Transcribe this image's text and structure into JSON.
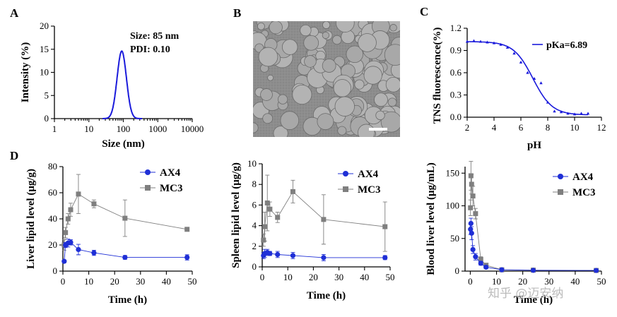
{
  "panels": {
    "a": "A",
    "b": "B",
    "c": "C",
    "d": "D"
  },
  "watermark": "知乎 @迈安纳",
  "micrograph": {
    "description_label": ""
  },
  "chart_data": [
    {
      "id": "A",
      "type": "line",
      "title": "",
      "xlabel": "Size (nm)",
      "ylabel": "Intensity (%)",
      "xscale": "log",
      "xlim": [
        1,
        10000
      ],
      "ylim": [
        0,
        20
      ],
      "xticks": [
        "1",
        "10",
        "100",
        "1000",
        "10000"
      ],
      "yticks": [
        "0",
        "5",
        "10",
        "15",
        "20"
      ],
      "annotations": [
        "Size: 85 nm",
        "PDI: 0.10"
      ],
      "peak": {
        "center": 90,
        "height": 14.6,
        "sigma_log10": 0.135
      },
      "color": "#1a1adb"
    },
    {
      "id": "C",
      "type": "scatter",
      "xlabel": "pH",
      "ylabel": "TNS fluorescence(%)",
      "xlim": [
        2,
        12
      ],
      "ylim": [
        0,
        1.2
      ],
      "xticks": [
        "2",
        "4",
        "6",
        "8",
        "10",
        "12"
      ],
      "yticks": [
        "0.0",
        "0.3",
        "0.6",
        "0.9",
        "1.2"
      ],
      "legend": "pKa=6.89",
      "fit": {
        "pka": 6.89,
        "top": 1.02,
        "bottom": 0.03,
        "slope": 0.72
      },
      "points": [
        [
          2,
          1.02
        ],
        [
          2.5,
          1.03
        ],
        [
          3,
          1.02
        ],
        [
          3.5,
          1.01
        ],
        [
          4,
          1.0
        ],
        [
          4.5,
          0.98
        ],
        [
          5,
          0.94
        ],
        [
          5.5,
          0.86
        ],
        [
          6,
          0.74
        ],
        [
          6.5,
          0.6
        ],
        [
          7,
          0.52
        ],
        [
          7.5,
          0.46
        ],
        [
          8,
          0.2
        ],
        [
          8.5,
          0.08
        ],
        [
          9,
          0.07
        ],
        [
          9.5,
          0.05
        ],
        [
          10,
          0.04
        ],
        [
          10.5,
          0.05
        ],
        [
          11,
          0.05
        ]
      ],
      "color": "#1a1adb"
    },
    {
      "id": "D1",
      "type": "line",
      "xlabel": "Time (h)",
      "ylabel": "Liver lipid level (μg/g)",
      "xlim": [
        0,
        50
      ],
      "ylim": [
        0,
        80
      ],
      "xticks": [
        "0",
        "10",
        "20",
        "30",
        "40",
        "50"
      ],
      "yticks": [
        "0",
        "20",
        "40",
        "60",
        "80"
      ],
      "series": [
        {
          "name": "AX4",
          "color": "#1f2fd6",
          "marker": "circle",
          "x": [
            0.5,
            1,
            2,
            3,
            6,
            12,
            24,
            48
          ],
          "y": [
            7.5,
            20,
            21.5,
            22,
            16.5,
            14,
            10.5,
            10.5
          ],
          "err": [
            1,
            2,
            3,
            2,
            4,
            2,
            1.5,
            2
          ]
        },
        {
          "name": "MC3",
          "color": "#7f7f7f",
          "marker": "square",
          "x": [
            0.5,
            1,
            2,
            3,
            6,
            12,
            24,
            48
          ],
          "y": [
            20,
            29.5,
            40,
            47,
            59,
            51.5,
            40.5,
            32
          ],
          "err": [
            4,
            4,
            4,
            5,
            15,
            3,
            14,
            1
          ]
        }
      ]
    },
    {
      "id": "D2",
      "type": "line",
      "xlabel": "Time (h)",
      "ylabel": "Spleen lipid level (μg/g)",
      "xlim": [
        0,
        50
      ],
      "ylim": [
        0,
        10
      ],
      "xticks": [
        "0",
        "10",
        "20",
        "30",
        "40",
        "50"
      ],
      "yticks": [
        "0",
        "2",
        "4",
        "6",
        "8",
        "10"
      ],
      "series": [
        {
          "name": "AX4",
          "color": "#1f2fd6",
          "marker": "circle",
          "x": [
            0.5,
            1,
            2,
            3,
            6,
            12,
            24,
            48
          ],
          "y": [
            1.1,
            1.3,
            1.4,
            1.3,
            1.2,
            1.1,
            0.9,
            0.9
          ],
          "err": [
            0.3,
            0.4,
            0.3,
            0.2,
            0.3,
            0.3,
            0.3,
            0.2
          ]
        },
        {
          "name": "MC3",
          "color": "#7f7f7f",
          "marker": "square",
          "x": [
            0.5,
            1,
            2,
            3,
            6,
            12,
            24,
            48
          ],
          "y": [
            2.6,
            3.9,
            6.2,
            5.6,
            4.8,
            7.3,
            4.6,
            3.9
          ],
          "err": [
            0.6,
            1.4,
            2.7,
            0.7,
            0.5,
            1.1,
            2.4,
            2.4
          ]
        }
      ]
    },
    {
      "id": "D3",
      "type": "line",
      "xlabel": "Time (h)",
      "ylabel": "Blood liver level (μg/mL)",
      "xlim": [
        -2,
        50
      ],
      "ylim": [
        0,
        160
      ],
      "xticks": [
        "0",
        "10",
        "20",
        "30",
        "40",
        "50"
      ],
      "yticks": [
        "0",
        "50",
        "100",
        "150"
      ],
      "series": [
        {
          "name": "AX4",
          "color": "#1f2fd6",
          "marker": "circle",
          "x": [
            0.08,
            0.25,
            0.5,
            1,
            2,
            4,
            6,
            12,
            24,
            48
          ],
          "y": [
            64,
            73,
            58,
            33,
            22,
            12,
            6,
            2,
            1.2,
            1
          ],
          "err": [
            8,
            8,
            10,
            6,
            5,
            3,
            2,
            1,
            0.5,
            0.5
          ]
        },
        {
          "name": "MC3",
          "color": "#7f7f7f",
          "marker": "square",
          "x": [
            0.08,
            0.25,
            0.5,
            1,
            2,
            4,
            6,
            12,
            24,
            48
          ],
          "y": [
            97,
            146,
            133,
            115,
            88,
            18,
            9,
            2,
            1.5,
            1
          ],
          "err": [
            12,
            22,
            15,
            15,
            8,
            4,
            3,
            1,
            0.5,
            0.5
          ]
        }
      ]
    }
  ]
}
